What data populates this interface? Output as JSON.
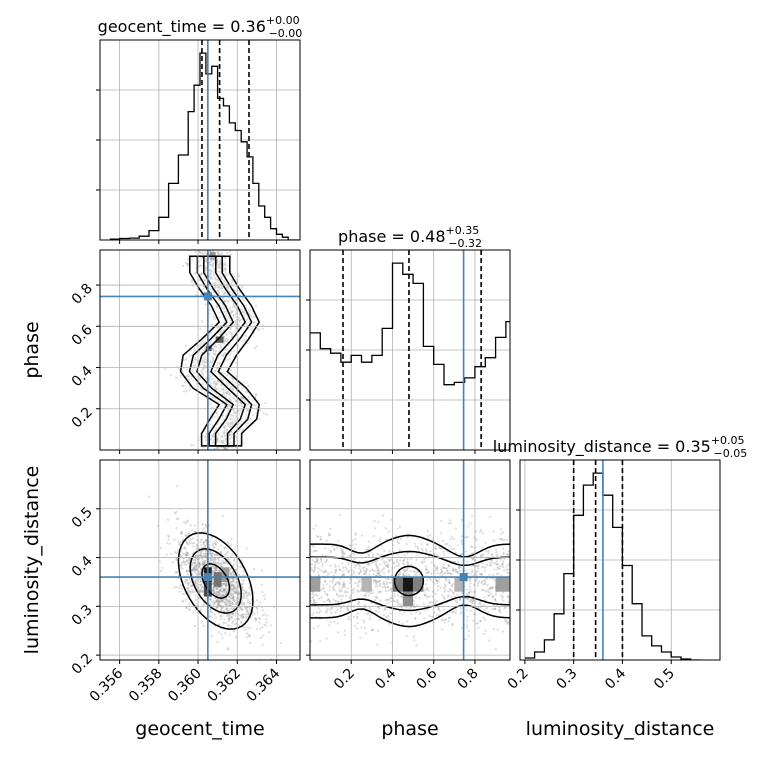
{
  "chart_data": [
    {
      "type": "corner",
      "parameters": [
        "geocent_time",
        "phase",
        "luminosity_distance"
      ],
      "truths": [
        0.3605,
        0.745,
        0.36
      ],
      "truth_color": "#4682b4",
      "grid": true,
      "axis_labels": {
        "geocent_time": "geocent_time",
        "phase": "phase",
        "luminosity_distance": "luminosity_distance"
      },
      "tick_labels": {
        "geocent_time": [
          "0.356",
          "0.358",
          "0.360",
          "0.362",
          "0.364"
        ],
        "phase": [
          "0.2",
          "0.4",
          "0.6",
          "0.8"
        ],
        "luminosity_distance": [
          "0.2",
          "0.3",
          "0.4",
          "0.5"
        ]
      },
      "ranges": {
        "geocent_time": [
          0.355,
          0.3652
        ],
        "phase": [
          0.0,
          0.97
        ],
        "luminosity_distance": [
          0.19,
          0.6
        ]
      },
      "tick_values": {
        "geocent_time": [
          0.356,
          0.358,
          0.36,
          0.362,
          0.364
        ],
        "phase": [
          0.2,
          0.4,
          0.6,
          0.8
        ],
        "luminosity_distance": [
          0.2,
          0.3,
          0.4,
          0.5
        ]
      }
    },
    {
      "type": "histogram",
      "parameter": "geocent_time",
      "title_parts": {
        "base": "geocent_time = 0.36",
        "sup": "+0.00",
        "sub": "−0.00"
      },
      "quantiles": [
        0.3602,
        0.3611,
        0.3626
      ],
      "bin_edges": [
        0.3555,
        0.356,
        0.3565,
        0.357,
        0.3575,
        0.358,
        0.3585,
        0.359,
        0.3595,
        0.3598,
        0.3601,
        0.3604,
        0.3607,
        0.361,
        0.3613,
        0.3616,
        0.3619,
        0.3622,
        0.3625,
        0.3628,
        0.3631,
        0.3634,
        0.3637,
        0.364,
        0.3643,
        0.3646,
        0.3652
      ],
      "counts": [
        0.005,
        0.008,
        0.01,
        0.02,
        0.05,
        0.12,
        0.3,
        0.45,
        0.68,
        0.82,
        0.99,
        0.88,
        0.92,
        0.75,
        0.71,
        0.62,
        0.58,
        0.52,
        0.44,
        0.3,
        0.18,
        0.12,
        0.06,
        0.03,
        0.015,
        0.0
      ]
    },
    {
      "type": "histogram",
      "parameter": "phase",
      "title_parts": {
        "base": "phase = 0.48",
        "sup": "+0.35",
        "sub": "−0.32"
      },
      "quantiles": [
        0.16,
        0.48,
        0.83
      ],
      "bin_edges": [
        0.0,
        0.05,
        0.1,
        0.15,
        0.2,
        0.25,
        0.3,
        0.35,
        0.4,
        0.45,
        0.5,
        0.55,
        0.6,
        0.65,
        0.7,
        0.75,
        0.8,
        0.85,
        0.9,
        0.95,
        0.97
      ],
      "counts": [
        0.52,
        0.45,
        0.43,
        0.39,
        0.42,
        0.39,
        0.42,
        0.54,
        0.83,
        0.78,
        0.74,
        0.46,
        0.38,
        0.29,
        0.3,
        0.32,
        0.37,
        0.41,
        0.5,
        0.57
      ]
    },
    {
      "type": "histogram",
      "parameter": "luminosity_distance",
      "title_parts": {
        "base": "luminosity_distance = 0.35",
        "sup": "+0.05",
        "sub": "−0.05"
      },
      "quantiles": [
        0.3,
        0.345,
        0.4
      ],
      "bin_edges": [
        0.2,
        0.22,
        0.24,
        0.26,
        0.28,
        0.3,
        0.32,
        0.34,
        0.36,
        0.38,
        0.4,
        0.42,
        0.44,
        0.46,
        0.48,
        0.5,
        0.52,
        0.54,
        0.56
      ],
      "counts": [
        0.01,
        0.04,
        0.1,
        0.23,
        0.43,
        0.72,
        0.87,
        0.93,
        0.82,
        0.66,
        0.47,
        0.28,
        0.12,
        0.07,
        0.04,
        0.015,
        0.005,
        0.0
      ]
    },
    {
      "type": "scatter",
      "pair": [
        "geocent_time",
        "phase"
      ],
      "ridge": [
        {
          "y": 0.02,
          "x": 0.3612,
          "sx": 0.0006
        },
        {
          "y": 0.08,
          "x": 0.3612,
          "sx": 0.0006
        },
        {
          "y": 0.15,
          "x": 0.3618,
          "sx": 0.0007
        },
        {
          "y": 0.22,
          "x": 0.3621,
          "sx": 0.0006
        },
        {
          "y": 0.3,
          "x": 0.3611,
          "sx": 0.0008
        },
        {
          "y": 0.38,
          "x": 0.3603,
          "sx": 0.0007
        },
        {
          "y": 0.46,
          "x": 0.3606,
          "sx": 0.0008
        },
        {
          "y": 0.54,
          "x": 0.3614,
          "sx": 0.0007
        },
        {
          "y": 0.62,
          "x": 0.3621,
          "sx": 0.0006
        },
        {
          "y": 0.7,
          "x": 0.3617,
          "sx": 0.0006
        },
        {
          "y": 0.78,
          "x": 0.3611,
          "sx": 0.0006
        },
        {
          "y": 0.86,
          "x": 0.3606,
          "sx": 0.0006
        },
        {
          "y": 0.94,
          "x": 0.3606,
          "sx": 0.0006
        }
      ],
      "dense_cells": [
        {
          "x": 0.3609,
          "y": 0.52,
          "w": 0.0004,
          "h": 0.03,
          "shade": 0.05
        },
        {
          "x": 0.3604,
          "y": 0.48,
          "w": 0.0003,
          "h": 0.025,
          "shade": 0.1
        },
        {
          "x": 0.3606,
          "y": 0.92,
          "w": 0.0003,
          "h": 0.04,
          "shade": 0.6
        }
      ]
    },
    {
      "type": "scatter",
      "pair": [
        "geocent_time",
        "luminosity_distance"
      ],
      "dense_cells": [
        {
          "x": 0.3603,
          "y": 0.35,
          "w": 0.0004,
          "h": 0.03,
          "shade": 0.05
        },
        {
          "x": 0.3603,
          "y": 0.32,
          "w": 0.0004,
          "h": 0.03,
          "shade": 0.25
        },
        {
          "x": 0.3608,
          "y": 0.34,
          "w": 0.0004,
          "h": 0.03,
          "shade": 0.45
        },
        {
          "x": 0.3612,
          "y": 0.35,
          "w": 0.0004,
          "h": 0.03,
          "shade": 0.65
        }
      ]
    },
    {
      "type": "scatter",
      "pair": [
        "phase",
        "luminosity_distance"
      ],
      "dense_cells": [
        {
          "x": 0.45,
          "y": 0.33,
          "w": 0.05,
          "h": 0.03,
          "shade": 0.0
        },
        {
          "x": 0.4,
          "y": 0.33,
          "w": 0.05,
          "h": 0.03,
          "shade": 0.45
        },
        {
          "x": 0.5,
          "y": 0.33,
          "w": 0.05,
          "h": 0.03,
          "shade": 0.5
        },
        {
          "x": 0.45,
          "y": 0.3,
          "w": 0.05,
          "h": 0.03,
          "shade": 0.55
        },
        {
          "x": 0.0,
          "y": 0.33,
          "w": 0.05,
          "h": 0.03,
          "shade": 0.65
        },
        {
          "x": 0.9,
          "y": 0.33,
          "w": 0.07,
          "h": 0.03,
          "shade": 0.65
        },
        {
          "x": 0.25,
          "y": 0.33,
          "w": 0.05,
          "h": 0.03,
          "shade": 0.75
        },
        {
          "x": 0.7,
          "y": 0.33,
          "w": 0.05,
          "h": 0.03,
          "shade": 0.75
        }
      ]
    }
  ]
}
